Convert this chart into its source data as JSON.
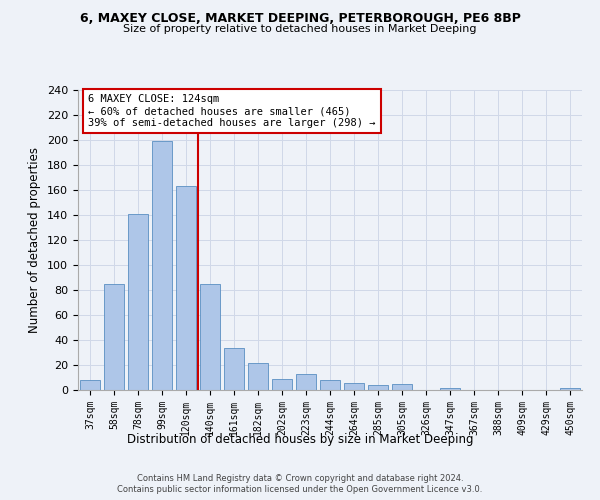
{
  "title_line1": "6, MAXEY CLOSE, MARKET DEEPING, PETERBOROUGH, PE6 8BP",
  "title_line2": "Size of property relative to detached houses in Market Deeping",
  "xlabel": "Distribution of detached houses by size in Market Deeping",
  "ylabel": "Number of detached properties",
  "categories": [
    "37sqm",
    "58sqm",
    "78sqm",
    "99sqm",
    "120sqm",
    "140sqm",
    "161sqm",
    "182sqm",
    "202sqm",
    "223sqm",
    "244sqm",
    "264sqm",
    "285sqm",
    "305sqm",
    "326sqm",
    "347sqm",
    "367sqm",
    "388sqm",
    "409sqm",
    "429sqm",
    "450sqm"
  ],
  "values": [
    8,
    85,
    141,
    199,
    163,
    85,
    34,
    22,
    9,
    13,
    8,
    6,
    4,
    5,
    0,
    2,
    0,
    0,
    0,
    0,
    2
  ],
  "bar_color": "#aec6e8",
  "bar_edge_color": "#5a8fc2",
  "vline_color": "#cc0000",
  "annotation_text": "6 MAXEY CLOSE: 124sqm\n← 60% of detached houses are smaller (465)\n39% of semi-detached houses are larger (298) →",
  "annotation_box_color": "#ffffff",
  "annotation_box_edge_color": "#cc0000",
  "ylim": [
    0,
    240
  ],
  "yticks": [
    0,
    20,
    40,
    60,
    80,
    100,
    120,
    140,
    160,
    180,
    200,
    220,
    240
  ],
  "grid_color": "#d0d8e8",
  "footer_line1": "Contains HM Land Registry data © Crown copyright and database right 2024.",
  "footer_line2": "Contains public sector information licensed under the Open Government Licence v3.0.",
  "bg_color": "#eef2f8"
}
